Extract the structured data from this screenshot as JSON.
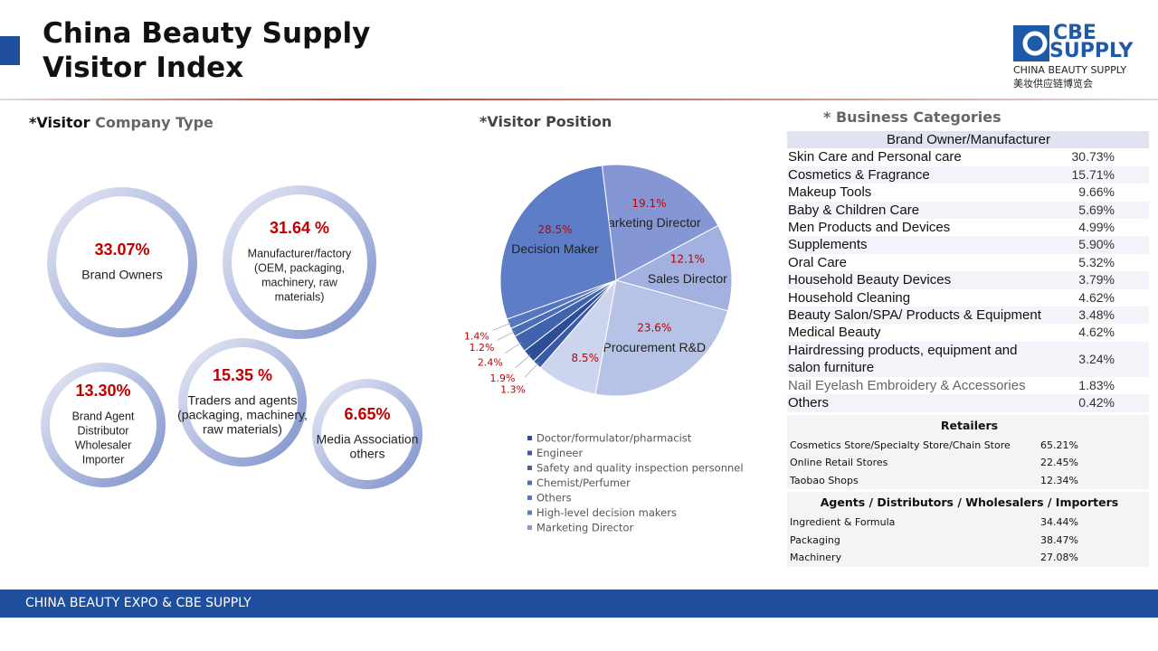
{
  "header": {
    "title_lines": [
      "China Beauty Supply",
      "Visitor Index"
    ]
  },
  "logo": {
    "mark": "CBE",
    "word": "SUPPLY",
    "subtitle": "CHINA BEAUTY SUPPLY",
    "chinese": "美妆供应链博览会"
  },
  "company_type": {
    "heading": [
      "*Visitor",
      "Company Type"
    ],
    "items": [
      {
        "value": "33.07%",
        "lines": [
          "Brand Owners"
        ]
      },
      {
        "value": "31.64 %",
        "lines": [
          "Manufacturer/factory",
          "(OEM, packaging,",
          "machinery, raw",
          "materials)"
        ]
      },
      {
        "value": "13.30%",
        "lines": [
          "Brand Agent",
          "Distributor",
          "Wholesaler",
          "Importer"
        ]
      },
      {
        "value": "15.35 %",
        "lines": [
          "Traders and agents",
          "(packaging, machinery,",
          "raw materials)"
        ]
      },
      {
        "value": "6.65%",
        "lines": [
          "Media Association",
          "others"
        ]
      }
    ]
  },
  "chart_data": {
    "type": "pie",
    "title": "*Visitor Position",
    "categories": [
      "Marketing Director",
      "Sales Director",
      "Procurement R&D",
      null,
      null,
      null,
      null,
      null,
      null,
      "Decision Maker"
    ],
    "values": [
      19.1,
      12.1,
      23.6,
      8.5,
      1.3,
      1.9,
      2.4,
      1.2,
      1.4,
      28.5
    ],
    "value_labels": [
      "19.1%",
      "12.1%",
      "23.6%",
      "8.5%",
      "1.3%",
      "1.9%",
      "2.4%",
      "1.2%",
      "1.4%",
      "28.5%"
    ],
    "colors": [
      "#8497d4",
      "#a2b1df",
      "#b6c2e6",
      "#cdd4ee",
      "#3b5aa6",
      "#2e4d97",
      "#3f63ad",
      "#4a6db5",
      "#5676bd",
      "#5d7ec6"
    ],
    "legend_entries": [
      {
        "name": "Doctor/formulator/pharmacist",
        "color": "#2e4d97"
      },
      {
        "name": "Engineer",
        "color": "#3b5aa6"
      },
      {
        "name": "Safety and quality inspection personnel",
        "color": "#3f63ad"
      },
      {
        "name": "Chemist/Perfumer",
        "color": "#4a6db5"
      },
      {
        "name": "Others",
        "color": "#5676bd"
      },
      {
        "name": "High-level decision makers",
        "color": "#5d7ec6"
      },
      {
        "name": "Marketing Director",
        "color": "#8497d4"
      }
    ]
  },
  "business_categories": {
    "heading": "* Business Categories",
    "sections": [
      {
        "title": "Brand Owner/Manufacturer",
        "rows": [
          [
            "Skin Care and Personal care",
            "30.73%"
          ],
          [
            "Cosmetics & Fragrance",
            "15.71%"
          ],
          [
            "Makeup Tools",
            "9.66%"
          ],
          [
            "Baby & Children Care",
            "5.69%"
          ],
          [
            "Men Products and Devices",
            "4.99%"
          ],
          [
            "Supplements",
            "5.90%"
          ],
          [
            "Oral Care",
            "5.32%"
          ],
          [
            "Household Beauty Devices",
            "3.79%"
          ],
          [
            "Household Cleaning",
            "4.62%"
          ],
          [
            "Beauty Salon/SPA/ Products & Equipment",
            "3.48%"
          ],
          [
            "Medical Beauty",
            "4.62%"
          ],
          [
            "Hairdressing products, equipment and salon furniture",
            "3.24%"
          ],
          [
            "Nail Eyelash Embroidery & Accessories",
            "1.83%"
          ],
          [
            "Others",
            "0.42%"
          ]
        ]
      },
      {
        "title": "Retailers",
        "rows": [
          [
            "Cosmetics Store/Specialty Store/Chain Store",
            "65.21%"
          ],
          [
            "Online Retail Stores",
            "22.45%"
          ],
          [
            "Taobao Shops",
            "12.34%"
          ]
        ]
      },
      {
        "title": "Agents / Distributors / Wholesalers / Importers",
        "rows": [
          [
            "Ingredient & Formula",
            "34.44%"
          ],
          [
            "Packaging",
            "38.47%"
          ],
          [
            "Machinery",
            "27.08%"
          ]
        ]
      }
    ]
  },
  "footer": "CHINA BEAUTY EXPO & CBE  SUPPLY"
}
